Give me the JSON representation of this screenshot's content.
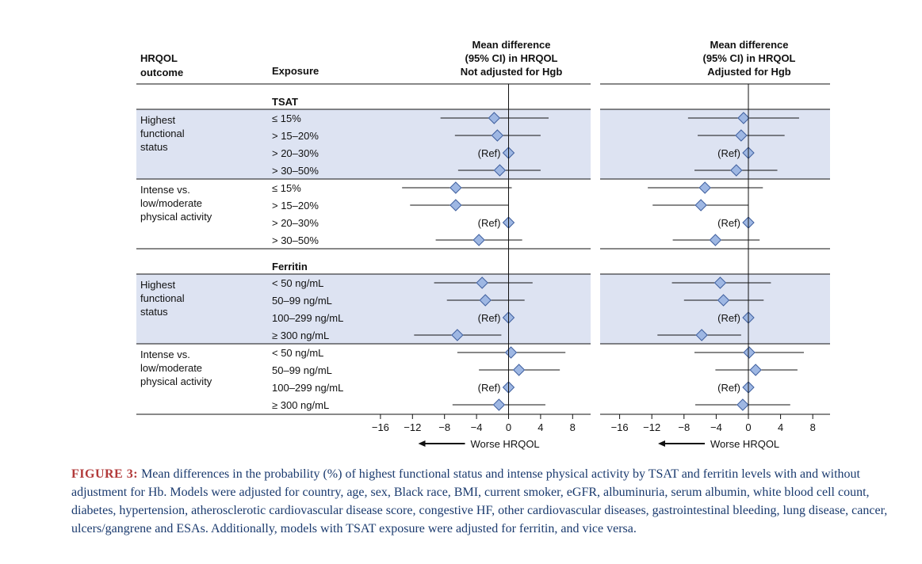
{
  "headers": {
    "outcome": [
      "HRQOL",
      "outcome"
    ],
    "exposure": "Exposure",
    "panels": [
      [
        "Mean difference",
        "(95% CI) in HRQOL",
        "Not adjusted for Hgb"
      ],
      [
        "Mean difference",
        "(95% CI) in HRQOL",
        "Adjusted for Hgb"
      ]
    ]
  },
  "axis": {
    "ticks": [
      "−16",
      "−12",
      "−8",
      "−4",
      "0",
      "4",
      "8"
    ],
    "tick_values": [
      -16,
      -12,
      -8,
      -4,
      0,
      4,
      8
    ],
    "xlim": [
      -18,
      10.5
    ],
    "label": "Worse HRQOL"
  },
  "ref_label": "(Ref)",
  "chart_data": {
    "type": "forest",
    "title": "Mean difference (95% CI) in HRQOL",
    "panels": [
      "Not adjusted for Hgb",
      "Adjusted for Hgb"
    ],
    "xlabel": "Worse HRQOL",
    "sections": [
      {
        "name": "TSAT",
        "groups": [
          {
            "outcome": [
              "Highest",
              "functional",
              "status"
            ],
            "shaded": true,
            "rows": [
              {
                "exposure": "≤ 15%",
                "ref": false,
                "est": [
                  -1.8,
                  -0.6
                ],
                "lo": [
                  -8.5,
                  -7.5
                ],
                "hi": [
                  5.0,
                  6.3
                ]
              },
              {
                "exposure": "> 15–20%",
                "ref": false,
                "est": [
                  -1.4,
                  -0.9
                ],
                "lo": [
                  -6.7,
                  -6.3
                ],
                "hi": [
                  4.0,
                  4.5
                ]
              },
              {
                "exposure": "> 20–30%",
                "ref": true,
                "est": [
                  0,
                  0
                ],
                "lo": [
                  0,
                  0
                ],
                "hi": [
                  0,
                  0
                ]
              },
              {
                "exposure": "> 30–50%",
                "ref": false,
                "est": [
                  -1.1,
                  -1.5
                ],
                "lo": [
                  -6.3,
                  -6.7
                ],
                "hi": [
                  4.0,
                  3.6
                ]
              }
            ]
          },
          {
            "outcome": [
              "Intense vs.",
              "low/moderate",
              "physical activity"
            ],
            "shaded": false,
            "rows": [
              {
                "exposure": "≤ 15%",
                "ref": false,
                "est": [
                  -6.6,
                  -5.4
                ],
                "lo": [
                  -13.3,
                  -12.5
                ],
                "hi": [
                  0.4,
                  1.8
                ]
              },
              {
                "exposure": "> 15–20%",
                "ref": false,
                "est": [
                  -6.6,
                  -5.9
                ],
                "lo": [
                  -12.3,
                  -11.9
                ],
                "hi": [
                  0.0,
                  0.0
                ]
              },
              {
                "exposure": "> 20–30%",
                "ref": true,
                "est": [
                  0,
                  0
                ],
                "lo": [
                  0,
                  0
                ],
                "hi": [
                  0,
                  0
                ]
              },
              {
                "exposure": "> 30–50%",
                "ref": false,
                "est": [
                  -3.7,
                  -4.1
                ],
                "lo": [
                  -9.1,
                  -9.4
                ],
                "hi": [
                  1.7,
                  1.4
                ]
              }
            ]
          }
        ]
      },
      {
        "name": "Ferritin",
        "groups": [
          {
            "outcome": [
              "Highest",
              "functional",
              "status"
            ],
            "shaded": true,
            "rows": [
              {
                "exposure": "< 50 ng/mL",
                "ref": false,
                "est": [
                  -3.3,
                  -3.5
                ],
                "lo": [
                  -9.3,
                  -9.5
                ],
                "hi": [
                  3.0,
                  2.8
                ]
              },
              {
                "exposure": "50–99 ng/mL",
                "ref": false,
                "est": [
                  -2.9,
                  -3.1
                ],
                "lo": [
                  -7.7,
                  -8.0
                ],
                "hi": [
                  2.0,
                  1.9
                ]
              },
              {
                "exposure": "100–299 ng/mL",
                "ref": true,
                "est": [
                  0,
                  0
                ],
                "lo": [
                  0,
                  0
                ],
                "hi": [
                  0,
                  0
                ]
              },
              {
                "exposure": "≥ 300 ng/mL",
                "ref": false,
                "est": [
                  -6.4,
                  -5.8
                ],
                "lo": [
                  -11.8,
                  -11.3
                ],
                "hi": [
                  -0.9,
                  -0.9
                ]
              }
            ]
          },
          {
            "outcome": [
              "Intense vs.",
              "low/moderate",
              "physical activity"
            ],
            "shaded": false,
            "rows": [
              {
                "exposure": "< 50 ng/mL",
                "ref": false,
                "est": [
                  0.3,
                  0.1
                ],
                "lo": [
                  -6.4,
                  -6.7
                ],
                "hi": [
                  7.1,
                  6.9
                ]
              },
              {
                "exposure": "50–99 ng/mL",
                "ref": false,
                "est": [
                  1.3,
                  0.9
                ],
                "lo": [
                  -3.7,
                  -4.1
                ],
                "hi": [
                  6.4,
                  6.1
                ]
              },
              {
                "exposure": "100–299 ng/mL",
                "ref": true,
                "est": [
                  0,
                  0
                ],
                "lo": [
                  0,
                  0
                ],
                "hi": [
                  0,
                  0
                ]
              },
              {
                "exposure": "≥ 300 ng/mL",
                "ref": false,
                "est": [
                  -1.2,
                  -0.7
                ],
                "lo": [
                  -7.0,
                  -6.6
                ],
                "hi": [
                  4.6,
                  5.2
                ]
              }
            ]
          }
        ]
      }
    ]
  },
  "caption": {
    "label": "FIGURE 3:",
    "text": " Mean differences in the probability (%) of highest functional status and intense physical activity by TSAT and ferritin levels with and without adjustment for Hb. Models were adjusted for country, age, sex, Black race, BMI, current smoker, eGFR, albuminuria, serum albumin, white blood cell count, diabetes, hypertension, atherosclerotic cardiovascular disease score, congestive HF, other cardiovascular diseases, gastrointestinal bleeding, lung disease, cancer, ulcers/gangrene and ESAs. Additionally, models with TSAT exposure were adjusted for ferritin, and vice versa."
  },
  "colors": {
    "shade": "#dde3f2",
    "diamond_fill": "#9eb7e3",
    "diamond_stroke": "#3f5f9e",
    "line": "#111111"
  }
}
